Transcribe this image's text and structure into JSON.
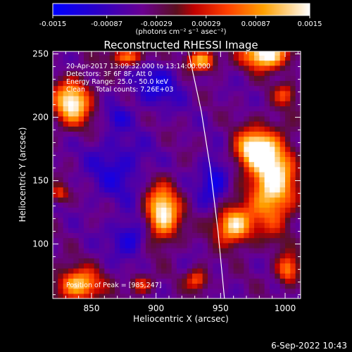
{
  "chart_data": {
    "type": "heatmap",
    "title": "Reconstructed RHESSI Image",
    "xlabel": "Heliocentric X (arcsec)",
    "ylabel": "Heliocentric Y (arcsec)",
    "xlim": [
      820,
      1012
    ],
    "ylim": [
      57,
      252
    ],
    "x_ticks": [
      850,
      900,
      950,
      1000
    ],
    "y_ticks": [
      100,
      150,
      200,
      250
    ],
    "colorbar": {
      "ticks": [
        "-0.0015",
        "-0.00087",
        "-0.00029",
        "0.00029",
        "0.00087",
        "0.0015"
      ],
      "unit_label": "(photons cm⁻² s⁻¹ asec⁻²)",
      "range": [
        -0.0015,
        0.0015
      ],
      "stops": [
        {
          "v": 0.0,
          "c": "#0000ff"
        },
        {
          "v": 0.17,
          "c": "#2a00c8"
        },
        {
          "v": 0.35,
          "c": "#6a0090"
        },
        {
          "v": 0.48,
          "c": "#5a1020"
        },
        {
          "v": 0.55,
          "c": "#c00000"
        },
        {
          "v": 0.68,
          "c": "#ff4000"
        },
        {
          "v": 0.82,
          "c": "#ffa000"
        },
        {
          "v": 1.0,
          "c": "#ffffff"
        }
      ]
    },
    "info_lines": [
      "20-Apr-2017 13:09:32.000 to 13:14:00.000",
      "Detectors: 3F 6F 8F, Att 0",
      "Energy Range: 25.0 - 50.0 keV",
      "Clean     Total counts: 7.26E+03"
    ],
    "peak_label": "Position of Peak = [985,247]",
    "peak_position": [
      985,
      247
    ],
    "limb_points": [
      [
        925,
        252
      ],
      [
        935,
        205
      ],
      [
        942,
        160
      ],
      [
        948,
        110
      ],
      [
        953,
        57
      ]
    ],
    "sources": [
      {
        "x": 985,
        "y": 250,
        "sx": 12,
        "sy": 8,
        "a": 1.0
      },
      {
        "x": 835,
        "y": 212,
        "sx": 10,
        "sy": 12,
        "a": 0.9
      },
      {
        "x": 935,
        "y": 245,
        "sx": 8,
        "sy": 6,
        "a": 0.7
      },
      {
        "x": 990,
        "y": 150,
        "sx": 12,
        "sy": 24,
        "a": 0.95
      },
      {
        "x": 975,
        "y": 175,
        "sx": 10,
        "sy": 10,
        "a": 0.8
      },
      {
        "x": 960,
        "y": 115,
        "sx": 10,
        "sy": 10,
        "a": 0.85
      },
      {
        "x": 905,
        "y": 125,
        "sx": 9,
        "sy": 15,
        "a": 0.9
      },
      {
        "x": 840,
        "y": 68,
        "sx": 12,
        "sy": 9,
        "a": 0.75
      },
      {
        "x": 888,
        "y": 68,
        "sx": 6,
        "sy": 5,
        "a": 0.45
      },
      {
        "x": 932,
        "y": 72,
        "sx": 6,
        "sy": 6,
        "a": 0.5
      },
      {
        "x": 1002,
        "y": 80,
        "sx": 6,
        "sy": 8,
        "a": 0.6
      },
      {
        "x": 825,
        "y": 140,
        "sx": 5,
        "sy": 5,
        "a": 0.45
      },
      {
        "x": 878,
        "y": 248,
        "sx": 10,
        "sy": 5,
        "a": 0.55
      },
      {
        "x": 1000,
        "y": 218,
        "sx": 6,
        "sy": 6,
        "a": 0.4
      }
    ],
    "lows": [
      {
        "x": 880,
        "y": 105,
        "sx": 10,
        "sy": 10,
        "a": 0.7
      },
      {
        "x": 900,
        "y": 225,
        "sx": 14,
        "sy": 12,
        "a": 0.6
      },
      {
        "x": 870,
        "y": 160,
        "sx": 16,
        "sy": 18,
        "a": 0.55
      },
      {
        "x": 945,
        "y": 150,
        "sx": 8,
        "sy": 12,
        "a": 0.8
      },
      {
        "x": 870,
        "y": 200,
        "sx": 6,
        "sy": 6,
        "a": 0.5
      }
    ]
  },
  "footer": {
    "timestamp": "6-Sep-2022 10:43"
  }
}
